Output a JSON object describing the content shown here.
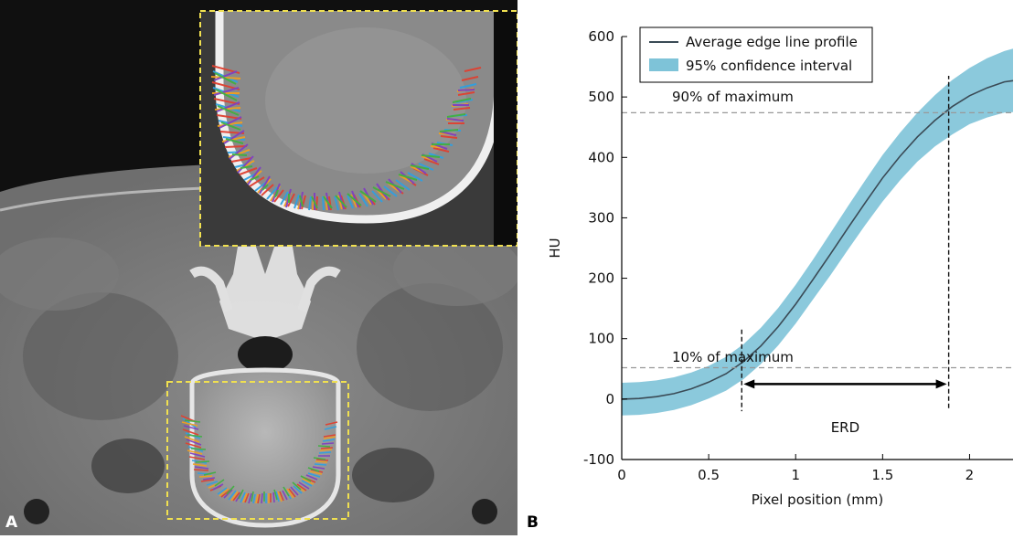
{
  "panels": {
    "a": {
      "label": "A"
    },
    "b": {
      "label": "B"
    }
  },
  "colors": {
    "ci_band": "#7ec3d8",
    "mean_line": "#3a4a55",
    "threshold_line": "#999999",
    "roi_box": "#f0e050"
  },
  "annotations": {
    "p90": "90% of maximum",
    "p10": "10% of maximum",
    "erd": "ERD"
  },
  "chart_data": {
    "type": "line",
    "title": "",
    "xlabel": "Pixel position (mm)",
    "ylabel": "HU",
    "xlim": [
      0,
      2.25
    ],
    "ylim": [
      -100,
      600
    ],
    "xticks": [
      0,
      0.5,
      1,
      1.5,
      2
    ],
    "yticks": [
      -100,
      0,
      100,
      200,
      300,
      400,
      500,
      600
    ],
    "grid": false,
    "legend_position": "top-left",
    "x": [
      0,
      0.1,
      0.2,
      0.3,
      0.4,
      0.5,
      0.6,
      0.7,
      0.8,
      0.9,
      1.0,
      1.1,
      1.2,
      1.3,
      1.4,
      1.5,
      1.6,
      1.7,
      1.8,
      1.9,
      2.0,
      2.1,
      2.2,
      2.25
    ],
    "series": [
      {
        "name": "Average edge line profile",
        "values": [
          0,
          1,
          4,
          9,
          17,
          28,
          42,
          62,
          88,
          120,
          157,
          198,
          240,
          283,
          325,
          366,
          402,
          434,
          461,
          484,
          502,
          515,
          525,
          527
        ]
      },
      {
        "name": "95% confidence interval",
        "type": "band",
        "lower": [
          -27,
          -26,
          -23,
          -18,
          -10,
          1,
          14,
          33,
          58,
          89,
          125,
          165,
          205,
          247,
          288,
          327,
          362,
          393,
          418,
          438,
          455,
          466,
          474,
          475
        ],
        "upper": [
          27,
          28,
          31,
          36,
          44,
          55,
          70,
          91,
          118,
          151,
          189,
          231,
          275,
          319,
          362,
          404,
          441,
          474,
          503,
          528,
          548,
          564,
          576,
          580
        ]
      }
    ],
    "reference_lines": [
      {
        "label": "90% of maximum",
        "y": 474
      },
      {
        "label": "10% of maximum",
        "y": 52
      }
    ],
    "markers": [
      {
        "x": 0.69
      },
      {
        "x": 1.88
      }
    ],
    "span": {
      "label": "ERD",
      "x_start": 0.69,
      "x_end": 1.88
    }
  }
}
